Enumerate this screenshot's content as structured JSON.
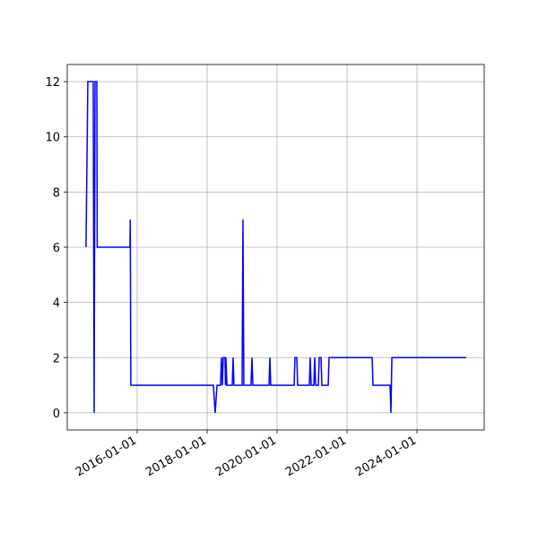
{
  "chart_data": {
    "type": "line",
    "x": [
      "2014-07-16",
      "2014-08-04",
      "2014-09-29",
      "2014-10-09",
      "2014-10-18",
      "2014-11-06",
      "2014-11-10",
      "2015-10-18",
      "2015-10-21",
      "2015-10-27",
      "2018-03-07",
      "2018-03-26",
      "2018-04-14",
      "2018-05-21",
      "2018-05-30",
      "2018-06-09",
      "2018-06-18",
      "2018-07-07",
      "2018-07-11",
      "2018-07-16",
      "2018-07-26",
      "2018-09-20",
      "2018-09-29",
      "2018-10-08",
      "2019-01-01",
      "2019-01-10",
      "2019-01-19",
      "2019-04-04",
      "2019-04-14",
      "2019-04-23",
      "2019-10-09",
      "2019-10-18",
      "2019-10-27",
      "2020-06-27",
      "2020-07-06",
      "2020-07-25",
      "2020-08-03",
      "2020-12-03",
      "2020-12-12",
      "2020-12-22",
      "2021-01-19",
      "2021-01-28",
      "2021-02-07",
      "2021-03-07",
      "2021-03-16",
      "2021-04-04",
      "2021-04-13",
      "2021-06-18",
      "2021-06-27",
      "2022-09-20",
      "2022-09-29",
      "2023-03-26",
      "2023-04-04",
      "2023-04-14",
      "2025-05-30"
    ],
    "series": [
      {
        "color": "#0000ff",
        "values": [
          6,
          12,
          12,
          0,
          12,
          12,
          6,
          6,
          7,
          1,
          1,
          0,
          1,
          1,
          2,
          1,
          2,
          2,
          1,
          2,
          1,
          1,
          2,
          1,
          1,
          7,
          1,
          1,
          2,
          1,
          1,
          2,
          1,
          1,
          2,
          2,
          1,
          1,
          2,
          1,
          1,
          2,
          1,
          1,
          2,
          2,
          1,
          1,
          2,
          2,
          1,
          1,
          0,
          2,
          2
        ]
      }
    ],
    "xlim": [
      "2014-01-01",
      "2025-12-03"
    ],
    "xticks": [
      "2016-01-01",
      "2018-01-01",
      "2020-01-01",
      "2022-01-01",
      "2024-01-01"
    ],
    "ylim": [
      -0.62,
      12.62
    ],
    "yticks": [
      0,
      2,
      4,
      6,
      8,
      10,
      12
    ],
    "grid": true
  }
}
